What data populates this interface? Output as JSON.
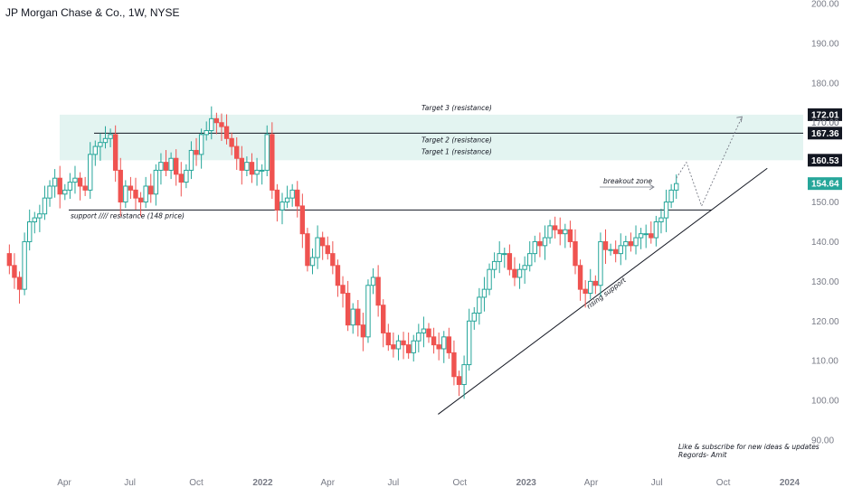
{
  "header": {
    "title": "JP Morgan Chase & Co., 1W, NYSE"
  },
  "chart_data": {
    "type": "candlestick",
    "title": "JP Morgan Chase & Co., 1W, NYSE",
    "y_axis": {
      "min": 88,
      "max": 200,
      "ticks": [
        90,
        100,
        110,
        120,
        130,
        140,
        150,
        160,
        170,
        180,
        190,
        200
      ],
      "tick_labels": [
        "90.00",
        "100.00",
        "110.00",
        "120.00",
        "130.00",
        "140.00",
        "150.00",
        "160.00",
        "170.00",
        "180.00",
        "190.00",
        "200.00"
      ]
    },
    "x_axis": {
      "labels": [
        {
          "label": "Apr",
          "date": "2021-04-01"
        },
        {
          "label": "Jul",
          "date": "2021-07-01"
        },
        {
          "label": "Oct",
          "date": "2021-10-01"
        },
        {
          "label": "2022",
          "date": "2022-01-01"
        },
        {
          "label": "Apr",
          "date": "2022-04-01"
        },
        {
          "label": "Jul",
          "date": "2022-07-01"
        },
        {
          "label": "Oct",
          "date": "2022-10-01"
        },
        {
          "label": "2023",
          "date": "2023-01-01"
        },
        {
          "label": "Apr",
          "date": "2023-04-01"
        },
        {
          "label": "Jul",
          "date": "2023-07-01"
        },
        {
          "label": "Oct",
          "date": "2023-10-01"
        },
        {
          "label": "2024",
          "date": "2024-01-01"
        }
      ]
    },
    "colors": {
      "up": "#26a69a",
      "down": "#ef5350",
      "zone": "#e3f4f1",
      "line": "#131722",
      "last_price": "#26a69a"
    },
    "series_close": [
      {
        "date": "2021-01-08",
        "close": 137
      },
      {
        "date": "2021-01-15",
        "close": 134
      },
      {
        "date": "2021-01-22",
        "close": 131
      },
      {
        "date": "2021-01-29",
        "close": 128
      },
      {
        "date": "2021-02-05",
        "close": 140
      },
      {
        "date": "2021-02-12",
        "close": 145
      },
      {
        "date": "2021-02-19",
        "close": 146
      },
      {
        "date": "2021-02-26",
        "close": 147
      },
      {
        "date": "2021-03-05",
        "close": 151
      },
      {
        "date": "2021-03-12",
        "close": 154
      },
      {
        "date": "2021-03-19",
        "close": 156
      },
      {
        "date": "2021-03-26",
        "close": 152
      },
      {
        "date": "2021-04-02",
        "close": 153
      },
      {
        "date": "2021-04-09",
        "close": 155
      },
      {
        "date": "2021-04-16",
        "close": 156
      },
      {
        "date": "2021-04-23",
        "close": 154
      },
      {
        "date": "2021-04-30",
        "close": 153
      },
      {
        "date": "2021-05-07",
        "close": 162
      },
      {
        "date": "2021-05-14",
        "close": 164
      },
      {
        "date": "2021-05-21",
        "close": 165
      },
      {
        "date": "2021-05-28",
        "close": 166
      },
      {
        "date": "2021-06-04",
        "close": 167
      },
      {
        "date": "2021-06-11",
        "close": 158
      },
      {
        "date": "2021-06-18",
        "close": 150
      },
      {
        "date": "2021-06-25",
        "close": 154
      },
      {
        "date": "2021-07-02",
        "close": 153
      },
      {
        "date": "2021-07-09",
        "close": 151
      },
      {
        "date": "2021-07-16",
        "close": 150
      },
      {
        "date": "2021-07-23",
        "close": 154
      },
      {
        "date": "2021-07-30",
        "close": 152
      },
      {
        "date": "2021-08-06",
        "close": 158
      },
      {
        "date": "2021-08-13",
        "close": 160
      },
      {
        "date": "2021-08-20",
        "close": 158
      },
      {
        "date": "2021-08-27",
        "close": 161
      },
      {
        "date": "2021-09-03",
        "close": 157
      },
      {
        "date": "2021-09-10",
        "close": 155
      },
      {
        "date": "2021-09-17",
        "close": 158
      },
      {
        "date": "2021-09-24",
        "close": 163
      },
      {
        "date": "2021-10-01",
        "close": 162
      },
      {
        "date": "2021-10-08",
        "close": 167
      },
      {
        "date": "2021-10-15",
        "close": 168
      },
      {
        "date": "2021-10-22",
        "close": 171
      },
      {
        "date": "2021-10-29",
        "close": 170
      },
      {
        "date": "2021-11-05",
        "close": 169
      },
      {
        "date": "2021-11-12",
        "close": 166
      },
      {
        "date": "2021-11-19",
        "close": 164
      },
      {
        "date": "2021-11-26",
        "close": 161
      },
      {
        "date": "2021-12-03",
        "close": 158
      },
      {
        "date": "2021-12-10",
        "close": 160
      },
      {
        "date": "2021-12-17",
        "close": 157
      },
      {
        "date": "2021-12-24",
        "close": 158
      },
      {
        "date": "2021-12-31",
        "close": 158
      },
      {
        "date": "2022-01-07",
        "close": 167
      },
      {
        "date": "2022-01-14",
        "close": 153
      },
      {
        "date": "2022-01-21",
        "close": 148
      },
      {
        "date": "2022-01-28",
        "close": 150
      },
      {
        "date": "2022-02-04",
        "close": 151
      },
      {
        "date": "2022-02-11",
        "close": 153
      },
      {
        "date": "2022-02-18",
        "close": 149
      },
      {
        "date": "2022-02-25",
        "close": 142
      },
      {
        "date": "2022-03-04",
        "close": 134
      },
      {
        "date": "2022-03-11",
        "close": 136
      },
      {
        "date": "2022-03-18",
        "close": 141
      },
      {
        "date": "2022-03-25",
        "close": 139
      },
      {
        "date": "2022-04-01",
        "close": 137
      },
      {
        "date": "2022-04-08",
        "close": 134
      },
      {
        "date": "2022-04-15",
        "close": 129
      },
      {
        "date": "2022-04-22",
        "close": 127
      },
      {
        "date": "2022-04-29",
        "close": 119
      },
      {
        "date": "2022-05-06",
        "close": 123
      },
      {
        "date": "2022-05-13",
        "close": 119
      },
      {
        "date": "2022-05-20",
        "close": 116
      },
      {
        "date": "2022-05-27",
        "close": 129
      },
      {
        "date": "2022-06-03",
        "close": 131
      },
      {
        "date": "2022-06-10",
        "close": 124
      },
      {
        "date": "2022-06-17",
        "close": 117
      },
      {
        "date": "2022-06-24",
        "close": 114
      },
      {
        "date": "2022-07-01",
        "close": 113
      },
      {
        "date": "2022-07-08",
        "close": 115
      },
      {
        "date": "2022-07-15",
        "close": 114
      },
      {
        "date": "2022-07-22",
        "close": 112
      },
      {
        "date": "2022-07-29",
        "close": 115
      },
      {
        "date": "2022-08-05",
        "close": 117
      },
      {
        "date": "2022-08-12",
        "close": 118
      },
      {
        "date": "2022-08-19",
        "close": 116
      },
      {
        "date": "2022-08-26",
        "close": 114
      },
      {
        "date": "2022-09-02",
        "close": 113
      },
      {
        "date": "2022-09-09",
        "close": 116
      },
      {
        "date": "2022-09-16",
        "close": 112
      },
      {
        "date": "2022-09-23",
        "close": 106
      },
      {
        "date": "2022-09-30",
        "close": 104
      },
      {
        "date": "2022-10-07",
        "close": 109
      },
      {
        "date": "2022-10-14",
        "close": 120
      },
      {
        "date": "2022-10-21",
        "close": 122
      },
      {
        "date": "2022-10-28",
        "close": 126
      },
      {
        "date": "2022-11-04",
        "close": 128
      },
      {
        "date": "2022-11-11",
        "close": 133
      },
      {
        "date": "2022-11-18",
        "close": 135
      },
      {
        "date": "2022-11-25",
        "close": 137
      },
      {
        "date": "2022-12-02",
        "close": 137
      },
      {
        "date": "2022-12-09",
        "close": 133
      },
      {
        "date": "2022-12-16",
        "close": 131
      },
      {
        "date": "2022-12-23",
        "close": 133
      },
      {
        "date": "2022-12-30",
        "close": 134
      },
      {
        "date": "2023-01-06",
        "close": 137
      },
      {
        "date": "2023-01-13",
        "close": 140
      },
      {
        "date": "2023-01-20",
        "close": 139
      },
      {
        "date": "2023-01-27",
        "close": 141
      },
      {
        "date": "2023-02-03",
        "close": 144
      },
      {
        "date": "2023-02-10",
        "close": 143
      },
      {
        "date": "2023-02-17",
        "close": 142
      },
      {
        "date": "2023-02-24",
        "close": 143
      },
      {
        "date": "2023-03-03",
        "close": 140
      },
      {
        "date": "2023-03-10",
        "close": 134
      },
      {
        "date": "2023-03-17",
        "close": 128
      },
      {
        "date": "2023-03-24",
        "close": 127
      },
      {
        "date": "2023-03-31",
        "close": 130
      },
      {
        "date": "2023-04-07",
        "close": 129
      },
      {
        "date": "2023-04-14",
        "close": 140
      },
      {
        "date": "2023-04-21",
        "close": 138
      },
      {
        "date": "2023-04-28",
        "close": 138
      },
      {
        "date": "2023-05-05",
        "close": 137
      },
      {
        "date": "2023-05-12",
        "close": 139
      },
      {
        "date": "2023-05-19",
        "close": 140
      },
      {
        "date": "2023-05-26",
        "close": 139
      },
      {
        "date": "2023-06-02",
        "close": 141
      },
      {
        "date": "2023-06-09",
        "close": 142
      },
      {
        "date": "2023-06-16",
        "close": 142
      },
      {
        "date": "2023-06-23",
        "close": 141
      },
      {
        "date": "2023-06-30",
        "close": 145
      },
      {
        "date": "2023-07-07",
        "close": 146
      },
      {
        "date": "2023-07-14",
        "close": 150
      },
      {
        "date": "2023-07-21",
        "close": 153
      },
      {
        "date": "2023-07-28",
        "close": 154.64
      }
    ],
    "levels": [
      {
        "name": "Target 3 (resistance)",
        "value": 172.01
      },
      {
        "name": "Target 2 (resistance)",
        "value": 167.36
      },
      {
        "name": "Target 1 (resistance)",
        "value": 160.53
      }
    ],
    "resistance_zone": {
      "from": 160.53,
      "to": 172.01
    },
    "support_line": {
      "label": "support //// resistance (148 price)",
      "value": 148,
      "from": "2021-04-01",
      "to": "2023-08-25"
    },
    "rising_support": {
      "label": "rising support",
      "from": {
        "date": "2022-09-01",
        "value": 96.5
      },
      "to": {
        "date": "2023-12-01",
        "value": 158.5
      }
    },
    "projection": [
      {
        "date": "2023-07-28",
        "value": 156
      },
      {
        "date": "2023-08-11",
        "value": 160
      },
      {
        "date": "2023-09-01",
        "value": 149
      },
      {
        "date": "2023-10-27",
        "value": 171.5
      }
    ],
    "price_tags": [
      {
        "value": 172.01,
        "label": "172.01",
        "style": "dark"
      },
      {
        "value": 170.0,
        "label": "170.00",
        "style": "axis"
      },
      {
        "value": 167.36,
        "label": "167.36",
        "style": "dark"
      },
      {
        "value": 160.53,
        "label": "160.53",
        "style": "dark"
      },
      {
        "value": 154.64,
        "label": "154.64",
        "style": "last"
      }
    ],
    "annotations": {
      "breakout": "breakout zone",
      "footer_line1": "Like & subscribe for new ideas & updates",
      "footer_line2": "Regords- Amit"
    }
  }
}
